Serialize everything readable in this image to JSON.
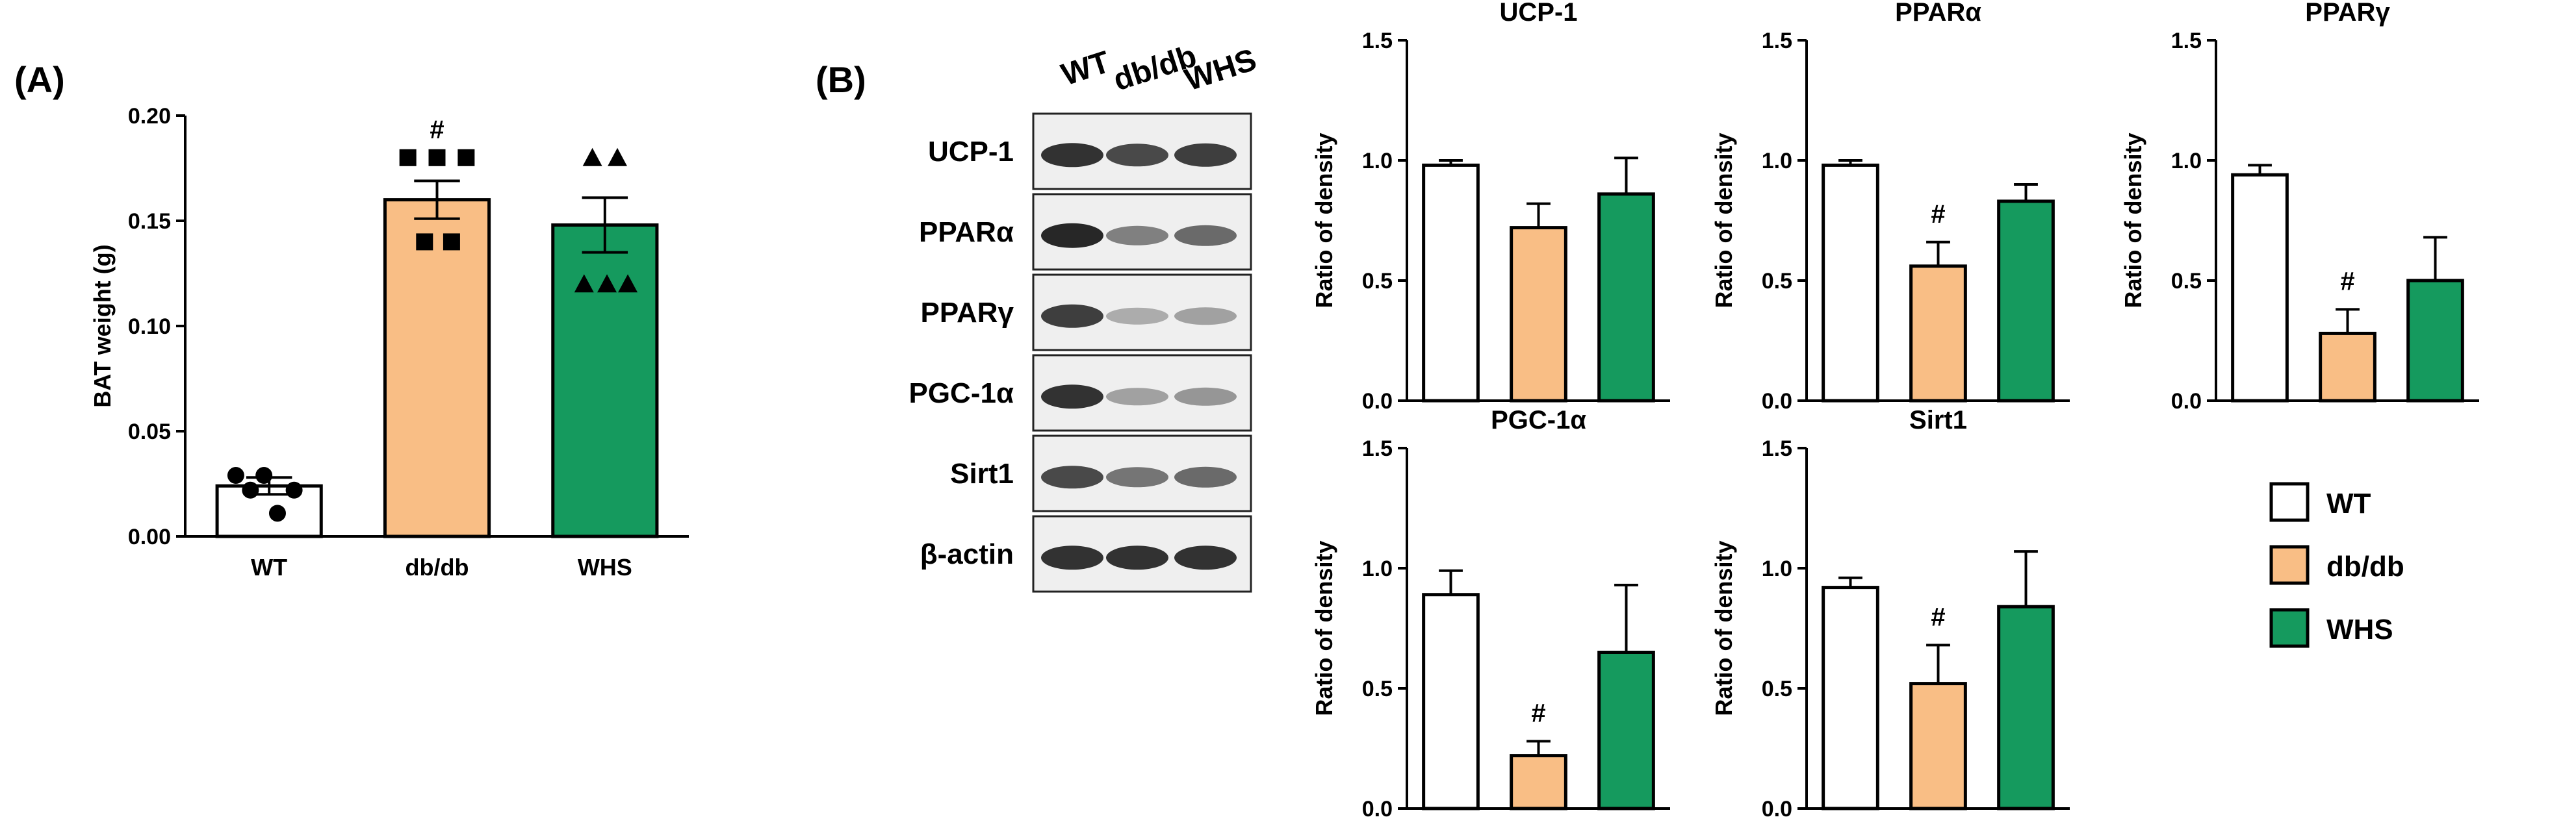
{
  "panel_a_label": "(A)",
  "panel_b_label": "(B)",
  "colors": {
    "WT": "#ffffff",
    "db/db": "#f9be85",
    "WHS": "#159a5e",
    "stroke": "#000000"
  },
  "legend": {
    "items": [
      "WT",
      "db/db",
      "WHS"
    ]
  },
  "blot": {
    "lanes": [
      "WT",
      "db/db",
      "WHS"
    ],
    "proteins": [
      "UCP-1",
      "PPARα",
      "PPARγ",
      "PGC-1α",
      "Sirt1",
      "β-actin"
    ]
  },
  "chart_data": [
    {
      "type": "bar",
      "title": "",
      "ylabel": "BAT weight (g)",
      "categories": [
        "WT",
        "db/db",
        "WHS"
      ],
      "values": [
        0.024,
        0.16,
        0.148
      ],
      "errors": [
        0.004,
        0.009,
        0.013
      ],
      "ylim": [
        0,
        0.2
      ],
      "yticks": [
        "0.00",
        "0.05",
        "0.10",
        "0.15",
        "0.20"
      ],
      "markers": [
        "circle",
        "square",
        "triangle"
      ],
      "points": [
        [
          0.029,
          0.029,
          0.022,
          0.022,
          0.011
        ],
        [
          0.18,
          0.18,
          0.18,
          0.14,
          0.14
        ],
        [
          0.18,
          0.18,
          0.12,
          0.12,
          0.12
        ]
      ],
      "annotations": [
        "",
        "#",
        ""
      ],
      "show_xlabels": true
    },
    {
      "type": "bar",
      "title": "UCP-1",
      "ylabel": "Ratio of density",
      "categories": [
        "WT",
        "db/db",
        "WHS"
      ],
      "values": [
        0.98,
        0.72,
        0.86
      ],
      "errors": [
        0.02,
        0.1,
        0.15
      ],
      "ylim": [
        0,
        1.5
      ],
      "yticks": [
        "0.0",
        "0.5",
        "1.0",
        "1.5"
      ],
      "annotations": [
        "",
        "",
        ""
      ],
      "show_xlabels": false
    },
    {
      "type": "bar",
      "title": "PPARα",
      "ylabel": "Ratio of density",
      "categories": [
        "WT",
        "db/db",
        "WHS"
      ],
      "values": [
        0.98,
        0.56,
        0.83
      ],
      "errors": [
        0.02,
        0.1,
        0.07
      ],
      "ylim": [
        0,
        1.5
      ],
      "yticks": [
        "0.0",
        "0.5",
        "1.0",
        "1.5"
      ],
      "annotations": [
        "",
        "#",
        ""
      ],
      "show_xlabels": false
    },
    {
      "type": "bar",
      "title": "PPARγ",
      "ylabel": "Ratio of density",
      "categories": [
        "WT",
        "db/db",
        "WHS"
      ],
      "values": [
        0.94,
        0.28,
        0.5
      ],
      "errors": [
        0.04,
        0.1,
        0.18
      ],
      "ylim": [
        0,
        1.5
      ],
      "yticks": [
        "0.0",
        "0.5",
        "1.0",
        "1.5"
      ],
      "annotations": [
        "",
        "#",
        ""
      ],
      "show_xlabels": false
    },
    {
      "type": "bar",
      "title": "PGC-1α",
      "ylabel": "Ratio of density",
      "categories": [
        "WT",
        "db/db",
        "WHS"
      ],
      "values": [
        0.89,
        0.22,
        0.65
      ],
      "errors": [
        0.1,
        0.06,
        0.28
      ],
      "ylim": [
        0,
        1.5
      ],
      "yticks": [
        "0.0",
        "0.5",
        "1.0",
        "1.5"
      ],
      "annotations": [
        "",
        "#",
        ""
      ],
      "show_xlabels": false
    },
    {
      "type": "bar",
      "title": "Sirt1",
      "ylabel": "Ratio of density",
      "categories": [
        "WT",
        "db/db",
        "WHS"
      ],
      "values": [
        0.92,
        0.52,
        0.84
      ],
      "errors": [
        0.04,
        0.16,
        0.23
      ],
      "ylim": [
        0,
        1.5
      ],
      "yticks": [
        "0.0",
        "0.5",
        "1.0",
        "1.5"
      ],
      "annotations": [
        "",
        "#",
        ""
      ],
      "show_xlabels": false
    }
  ]
}
